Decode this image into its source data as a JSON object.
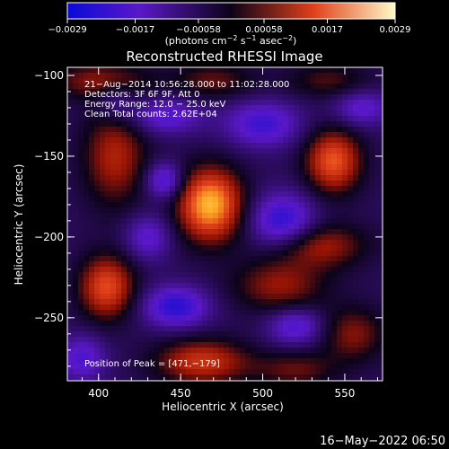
{
  "colorbar": {
    "ticks": [
      {
        "value": -0.0029,
        "label": "−0.0029"
      },
      {
        "value": -0.0017,
        "label": "−0.0017"
      },
      {
        "value": -0.00058,
        "label": "−0.00058"
      },
      {
        "value": 0.00058,
        "label": "0.00058"
      },
      {
        "value": 0.0017,
        "label": "0.0017"
      },
      {
        "value": 0.0029,
        "label": "0.0029"
      }
    ],
    "range": [
      -0.0029,
      0.0029
    ]
  },
  "colors": {
    "negative_low": "#0a0ad8",
    "negative_mid": "#5a18c8",
    "zero": "#0c0318",
    "positive_mid": "#e0401a",
    "positive_high": "#fff9c8"
  },
  "chart_data": {
    "type": "heatmap",
    "title": "Reconstructed RHESSI Image",
    "units": {
      "main": "(photons cm",
      "exp1": "−2",
      "mid1": " s",
      "exp2": "−1",
      "mid2": " asec",
      "exp3": "−2",
      "end": ")"
    },
    "xlabel": "Heliocentric X (arcsec)",
    "ylabel": "Heliocentric Y (arcsec)",
    "xlim": [
      381,
      573
    ],
    "ylim": [
      -289,
      -95
    ],
    "xticks": [
      {
        "value": 400,
        "label": "400"
      },
      {
        "value": 450,
        "label": "450"
      },
      {
        "value": 500,
        "label": "500"
      },
      {
        "value": 550,
        "label": "550"
      }
    ],
    "yticks": [
      {
        "value": -100,
        "label": "−100"
      },
      {
        "value": -150,
        "label": "−150"
      },
      {
        "value": -200,
        "label": "−200"
      },
      {
        "value": -250,
        "label": "−250"
      }
    ],
    "annotations": [
      "21−Aug−2014 10:56:28.000 to 11:02:28.000",
      "Detectors: 3F 6F 9F, Att 0",
      "Energy Range: 12.0 − 25.0 keV",
      "Clean    Total counts: 2.62E+04"
    ],
    "peak_label": "Position of Peak = [471,−179]",
    "peak": [
      471,
      -179
    ],
    "sources": [
      {
        "x": 468,
        "y": -180,
        "sx": 14,
        "sy": 16,
        "amp": 0.0029
      },
      {
        "x": 543,
        "y": -153,
        "sx": 12,
        "sy": 14,
        "amp": 0.0022
      },
      {
        "x": 405,
        "y": -231,
        "sx": 12,
        "sy": 14,
        "amp": 0.0021
      },
      {
        "x": 463,
        "y": -277,
        "sx": 20,
        "sy": 10,
        "amp": 0.0018
      },
      {
        "x": 410,
        "y": -150,
        "sx": 14,
        "sy": 22,
        "amp": 0.0015
      },
      {
        "x": 400,
        "y": -103,
        "sx": 22,
        "sy": 8,
        "amp": 0.0012
      },
      {
        "x": 470,
        "y": -103,
        "sx": 18,
        "sy": 8,
        "amp": 0.001
      },
      {
        "x": 540,
        "y": -103,
        "sx": 18,
        "sy": 8,
        "amp": 0.0009
      },
      {
        "x": 535,
        "y": -205,
        "sx": 20,
        "sy": 10,
        "amp": 0.0014
      },
      {
        "x": 510,
        "y": -230,
        "sx": 20,
        "sy": 12,
        "amp": 0.0013
      },
      {
        "x": 555,
        "y": -260,
        "sx": 14,
        "sy": 12,
        "amp": 0.0012
      },
      {
        "x": 520,
        "y": -282,
        "sx": 18,
        "sy": 8,
        "amp": 0.001
      },
      {
        "x": 440,
        "y": -165,
        "sx": 8,
        "sy": 8,
        "amp": -0.0016
      },
      {
        "x": 512,
        "y": -190,
        "sx": 14,
        "sy": 12,
        "amp": -0.0018
      },
      {
        "x": 500,
        "y": -130,
        "sx": 16,
        "sy": 10,
        "amp": -0.0015
      },
      {
        "x": 440,
        "y": -125,
        "sx": 16,
        "sy": 8,
        "amp": -0.0013
      },
      {
        "x": 447,
        "y": -243,
        "sx": 14,
        "sy": 9,
        "amp": -0.0018
      },
      {
        "x": 520,
        "y": -255,
        "sx": 12,
        "sy": 8,
        "amp": -0.0014
      },
      {
        "x": 390,
        "y": -275,
        "sx": 10,
        "sy": 10,
        "amp": -0.0013
      },
      {
        "x": 430,
        "y": -200,
        "sx": 10,
        "sy": 10,
        "amp": -0.0012
      },
      {
        "x": 560,
        "y": -120,
        "sx": 12,
        "sy": 8,
        "amp": -0.0012
      },
      {
        "x": 410,
        "y": -115,
        "sx": 8,
        "sy": 8,
        "amp": -0.0009
      }
    ]
  },
  "footer": {
    "timestamp": "16−May−2022 06:50"
  }
}
